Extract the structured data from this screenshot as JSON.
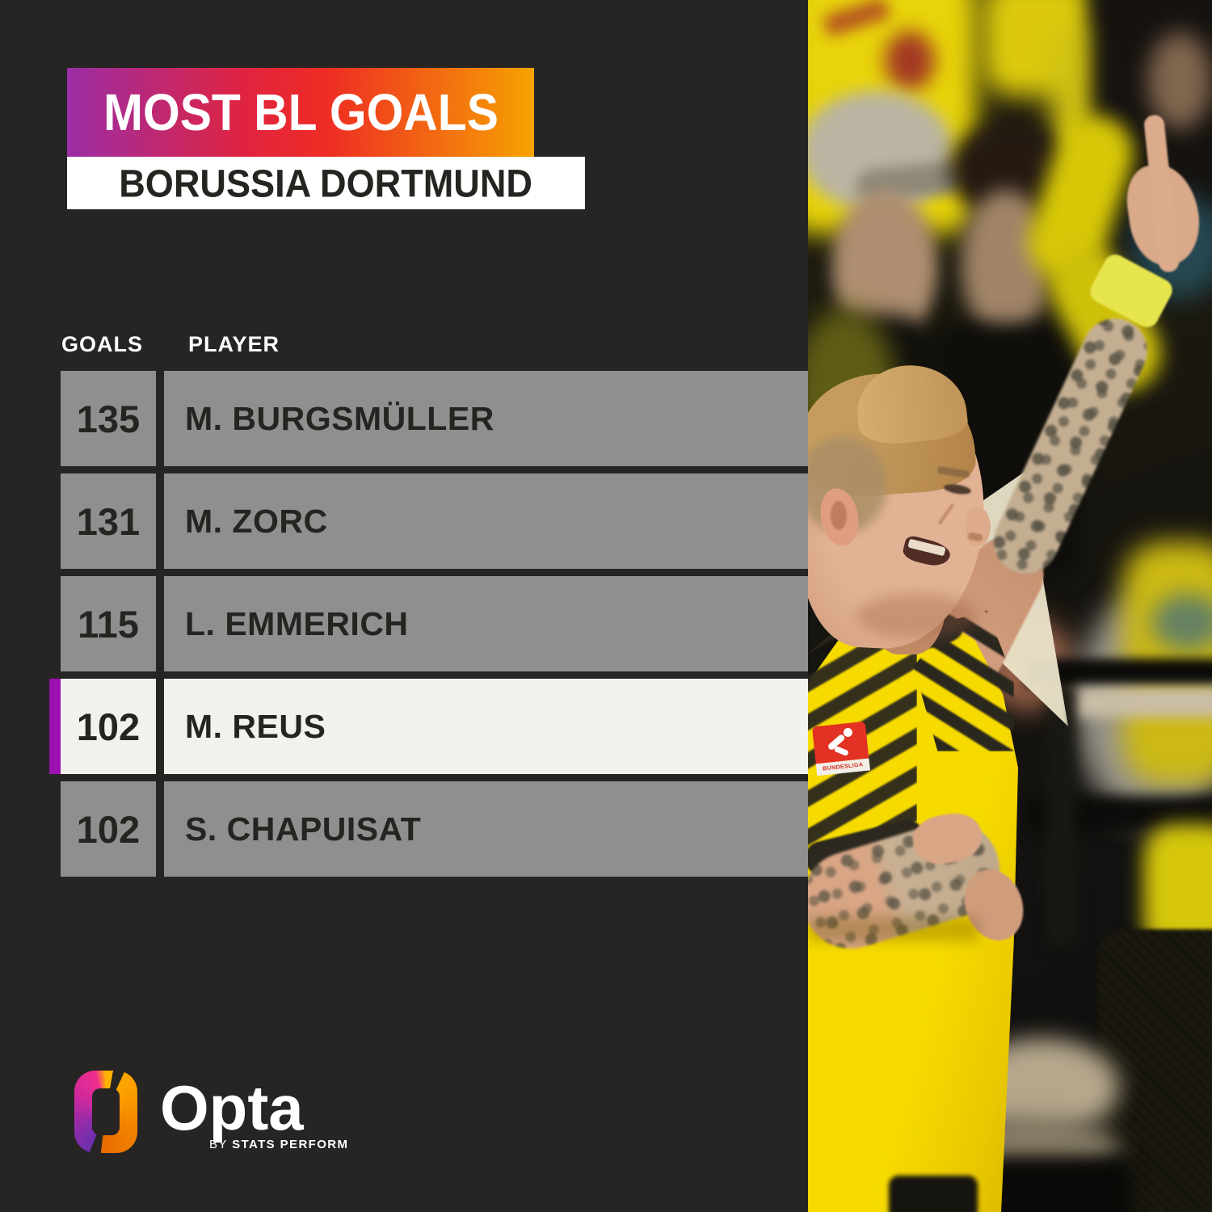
{
  "header": {
    "title": "MOST BL GOALS",
    "subtitle": "BORUSSIA DORTMUND"
  },
  "table": {
    "headers": {
      "goals": "GOALS",
      "player": "PLAYER"
    },
    "rows": [
      {
        "goals": "135",
        "player": "M. BURGSMÜLLER",
        "highlighted": false
      },
      {
        "goals": "131",
        "player": "M. ZORC",
        "highlighted": false
      },
      {
        "goals": "115",
        "player": "L. EMMERICH",
        "highlighted": false
      },
      {
        "goals": "102",
        "player": "M. REUS",
        "highlighted": true
      },
      {
        "goals": "102",
        "player": "S. CHAPUISAT",
        "highlighted": false
      }
    ]
  },
  "footer": {
    "brand": "Opta",
    "byline_by": "BY",
    "byline_rest": "STATS PERFORM",
    "logo_icon": "opta-ring-icon"
  },
  "photo": {
    "description": "Borussia Dortmund player in yellow and black shirt smiling and celebrating with tattooed arm raised and index finger pointing up, in front of blurred fans in yellow",
    "patch_label": "BUNDESLIGA"
  },
  "chart_data": {
    "type": "table",
    "title": "MOST BL GOALS",
    "subtitle": "BORUSSIA DORTMUND",
    "columns": [
      "GOALS",
      "PLAYER"
    ],
    "rows": [
      [
        135,
        "M. BURGSMÜLLER"
      ],
      [
        131,
        "M. ZORC"
      ],
      [
        115,
        "L. EMMERICH"
      ],
      [
        102,
        "M. REUS"
      ],
      [
        102,
        "S. CHAPUISAT"
      ]
    ],
    "highlighted_player": "M. REUS",
    "legend_position": "none",
    "grid": false
  },
  "colors": {
    "background": "#272523",
    "banner_gradient_1": "#9b2da6",
    "banner_gradient_2": "#e02440",
    "banner_gradient_3": "#ee2b24",
    "banner_gradient_4": "#f6a201",
    "subtitle_bg": "#ffffff",
    "row_bg": "#8f8f8f",
    "row_text": "#262420",
    "highlight_row_bg": "#f2f1ee",
    "highlight_accent": "#9a10b0",
    "header_text": "#ffffff",
    "dortmund_yellow": "#f5d800"
  }
}
